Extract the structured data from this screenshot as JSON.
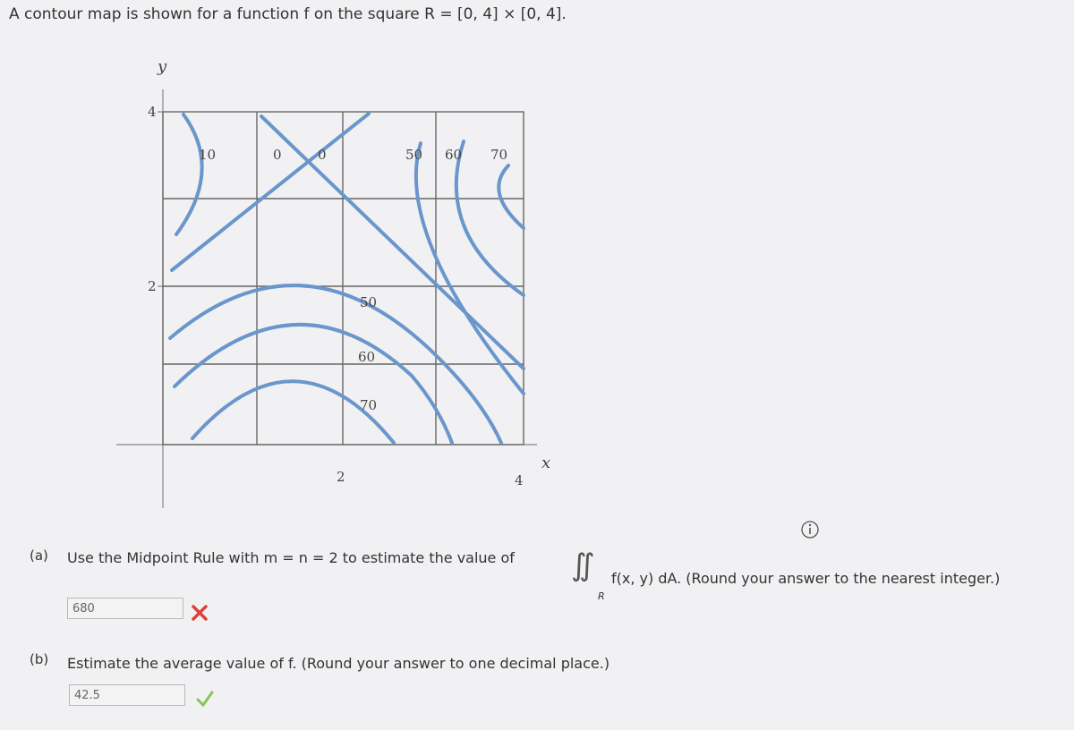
{
  "intro": "A contour map is shown for a function f on the square R = [0, 4] × [0, 4].",
  "contour_map": {
    "x_label": "x",
    "y_label": "y",
    "x_ticks": [
      "2",
      "4"
    ],
    "y_ticks": [
      "4",
      "2"
    ],
    "contour_labels": [
      "10",
      "0",
      "0",
      "50",
      "60",
      "70",
      "50",
      "60",
      "70"
    ]
  },
  "part_a": {
    "label": "(a)",
    "text": "Use the Midpoint Rule with m = n = 2 to estimate the value of",
    "integral_symbol": "∬",
    "integral_region": "R",
    "integral_tail": "f(x, y) dA. (Round your answer to the nearest integer.)",
    "answer": "680"
  },
  "part_b": {
    "label": "(b)",
    "text": "Estimate the average value of f. (Round your answer to one decimal place.)",
    "answer": "42.5"
  }
}
